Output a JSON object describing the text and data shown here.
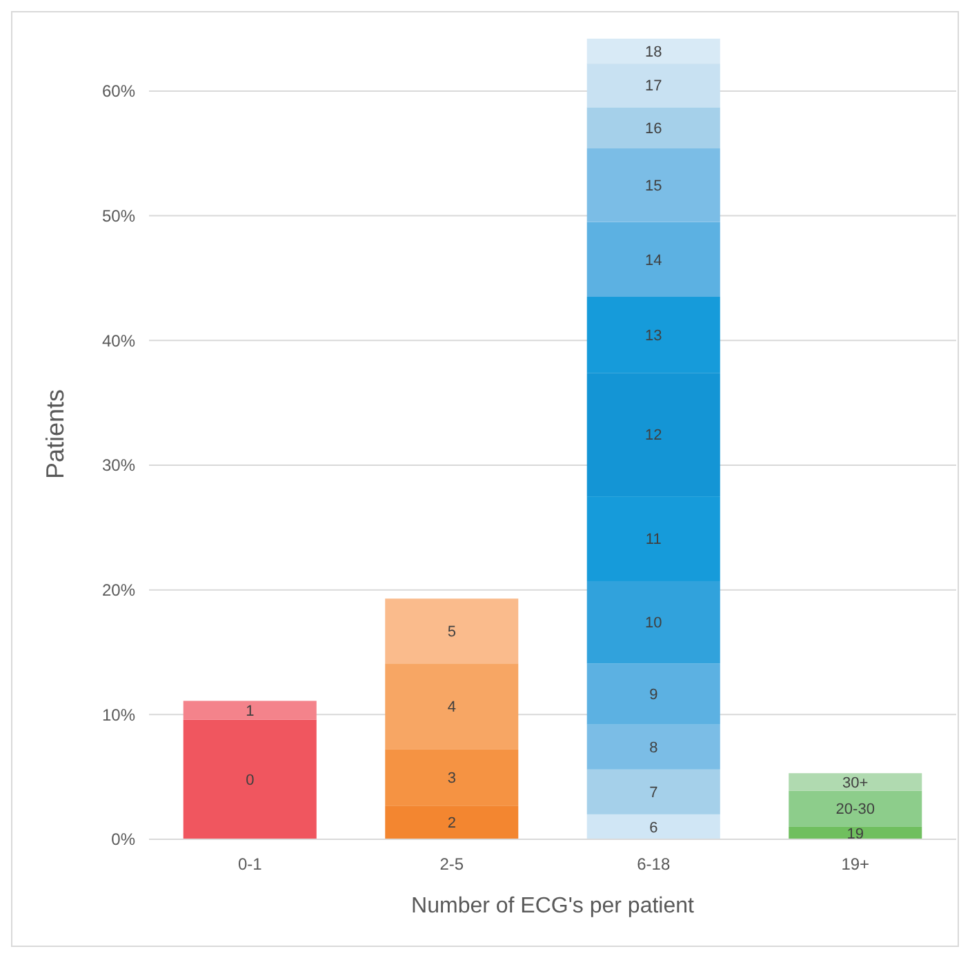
{
  "chart_data": {
    "type": "bar",
    "stacked": true,
    "xlabel": "Number of ECG's per patient",
    "ylabel": "Patients",
    "categories": [
      "0-1",
      "2-5",
      "6-18",
      "19+"
    ],
    "ylim": [
      0,
      64.2
    ],
    "yticks": [
      {
        "value": 0,
        "label": "0%"
      },
      {
        "value": 10,
        "label": "10%"
      },
      {
        "value": 20,
        "label": "20%"
      },
      {
        "value": 30,
        "label": "30%"
      },
      {
        "value": 40,
        "label": "40%"
      },
      {
        "value": 50,
        "label": "50%"
      },
      {
        "value": 60,
        "label": "60%"
      }
    ],
    "grid": "y",
    "series": [
      {
        "name": "0",
        "color": "#f0565f",
        "values": [
          9.6,
          null,
          null,
          null
        ]
      },
      {
        "name": "1",
        "color": "#f4838b",
        "values": [
          1.5,
          null,
          null,
          null
        ]
      },
      {
        "name": "2",
        "color": "#f38630",
        "values": [
          null,
          2.7,
          null,
          null
        ]
      },
      {
        "name": "3",
        "color": "#f59343",
        "values": [
          null,
          4.5,
          null,
          null
        ]
      },
      {
        "name": "4",
        "color": "#f7a664",
        "values": [
          null,
          6.9,
          null,
          null
        ]
      },
      {
        "name": "5",
        "color": "#fabb8c",
        "values": [
          null,
          5.2,
          null,
          null
        ]
      },
      {
        "name": "6",
        "color": "#d0e6f5",
        "values": [
          null,
          null,
          2.0,
          null
        ]
      },
      {
        "name": "7",
        "color": "#a5d0ea",
        "values": [
          null,
          null,
          3.6,
          null
        ]
      },
      {
        "name": "8",
        "color": "#7bbde6",
        "values": [
          null,
          null,
          3.6,
          null
        ]
      },
      {
        "name": "9",
        "color": "#5cb1e2",
        "values": [
          null,
          null,
          4.9,
          null
        ]
      },
      {
        "name": "10",
        "color": "#31a2dc",
        "values": [
          null,
          null,
          6.6,
          null
        ]
      },
      {
        "name": "11",
        "color": "#169bda",
        "values": [
          null,
          null,
          6.8,
          null
        ]
      },
      {
        "name": "12",
        "color": "#1495d5",
        "values": [
          null,
          null,
          9.9,
          null
        ]
      },
      {
        "name": "13",
        "color": "#169bda",
        "values": [
          null,
          null,
          6.1,
          null
        ]
      },
      {
        "name": "14",
        "color": "#5cb1e2",
        "values": [
          null,
          null,
          6.0,
          null
        ]
      },
      {
        "name": "15",
        "color": "#7bbde6",
        "values": [
          null,
          null,
          5.9,
          null
        ]
      },
      {
        "name": "16",
        "color": "#a5d0ea",
        "values": [
          null,
          null,
          3.3,
          null
        ]
      },
      {
        "name": "17",
        "color": "#c8e1f2",
        "values": [
          null,
          null,
          3.5,
          null
        ]
      },
      {
        "name": "18",
        "color": "#d8eaf6",
        "values": [
          null,
          null,
          2.0,
          null
        ]
      },
      {
        "name": "19",
        "color": "#70bf5f",
        "values": [
          null,
          null,
          null,
          1.0
        ]
      },
      {
        "name": "20-30",
        "color": "#8dcd8b",
        "values": [
          null,
          null,
          null,
          2.9
        ]
      },
      {
        "name": "30+",
        "color": "#b0dab0",
        "values": [
          null,
          null,
          null,
          1.4
        ]
      }
    ]
  }
}
